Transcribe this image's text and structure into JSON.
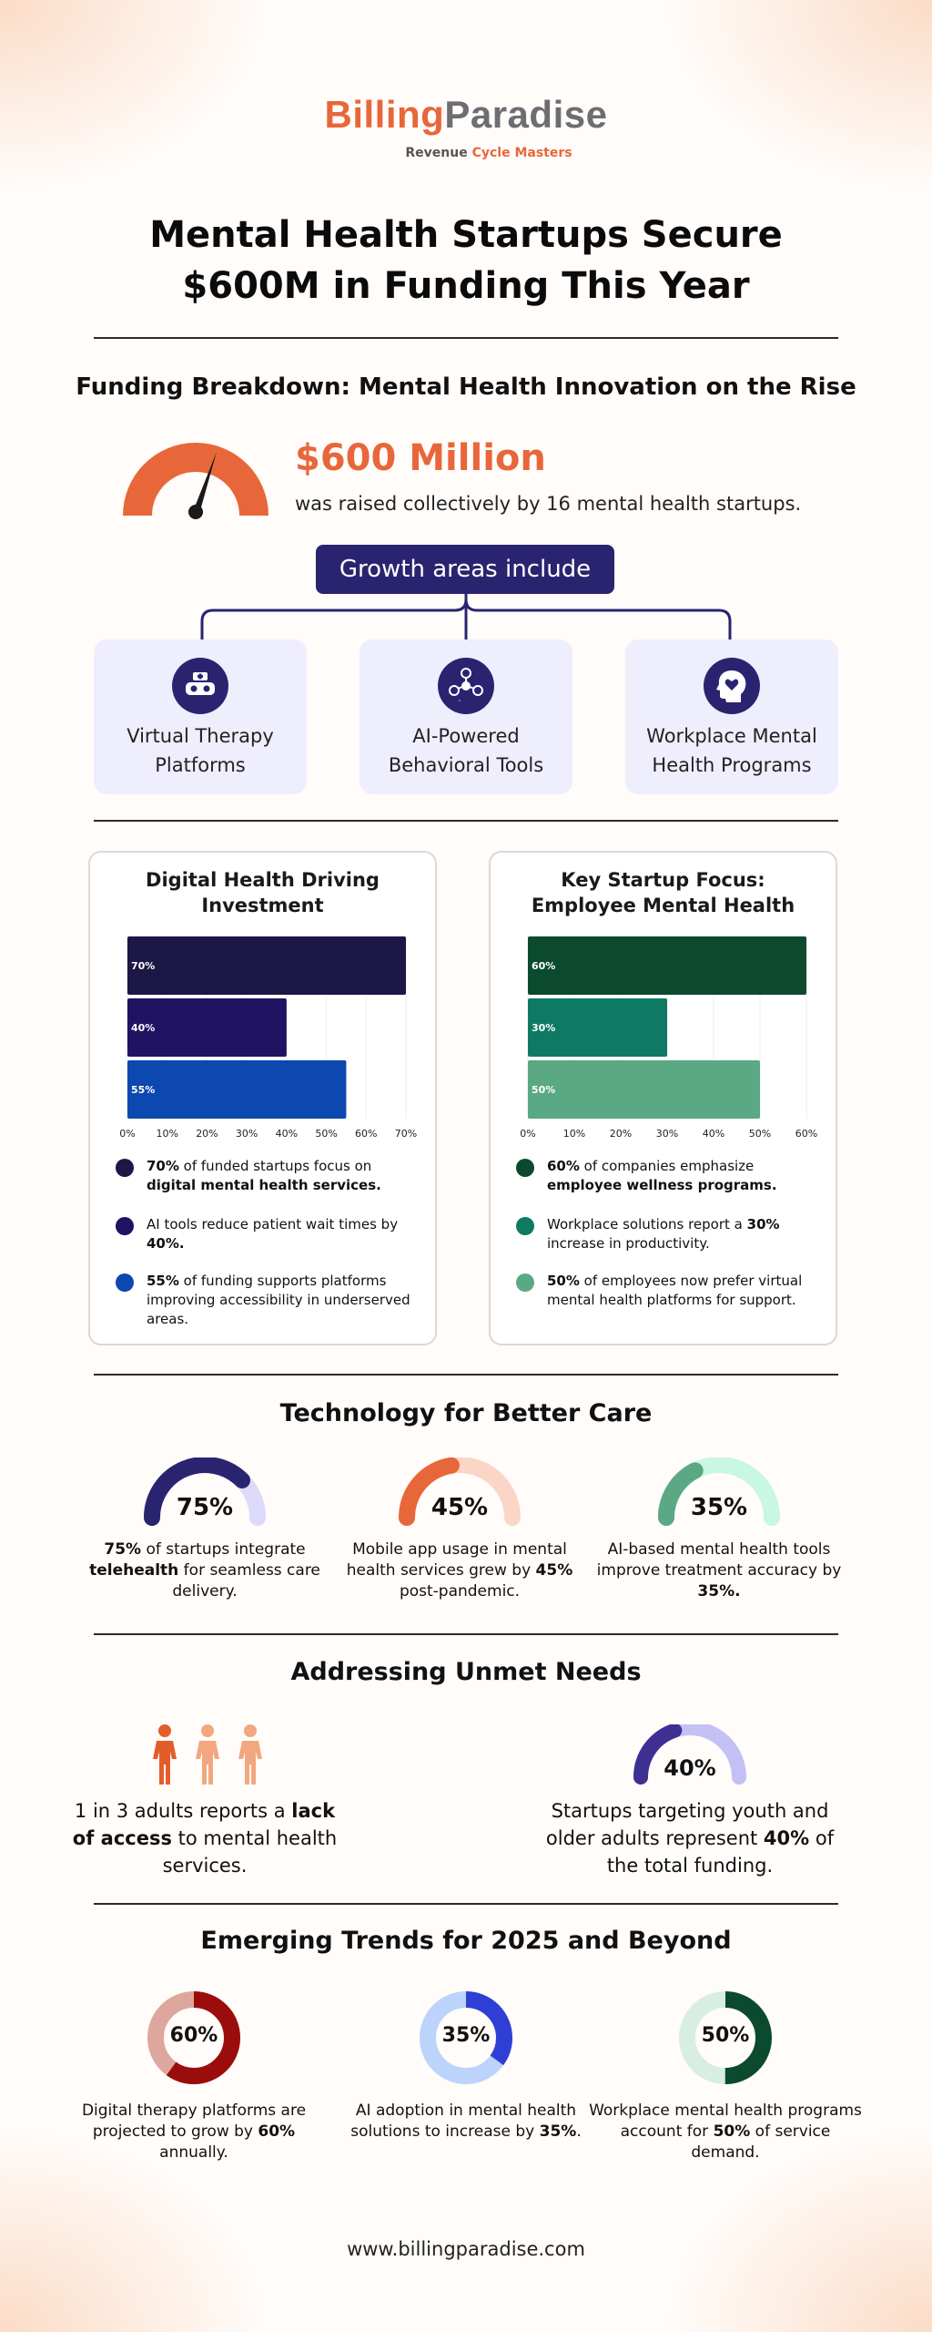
{
  "brand": {
    "name_a": "Billing",
    "name_b": "Paradise",
    "tagline_a": "Revenue ",
    "tagline_b": "Cycle Masters"
  },
  "title_line1": "Mental Health Startups Secure",
  "title_line2": "$600M in Funding This Year",
  "funding": {
    "heading": "Funding Breakdown: Mental Health Innovation on the Rise",
    "amount": "$600 Million",
    "description": "was raised collectively by 16 mental health startups.",
    "growth_label": "Growth areas include",
    "areas": [
      {
        "label": "Virtual Therapy Platforms",
        "icon": "vr-headset-icon"
      },
      {
        "label": "AI-Powered Behavioral Tools",
        "icon": "smiley-network-icon"
      },
      {
        "label": "Workplace Mental Health Programs",
        "icon": "head-heart-icon"
      }
    ]
  },
  "chart_data": [
    {
      "type": "bar",
      "orientation": "horizontal",
      "title": "Digital Health Driving Investment",
      "categories": [
        "70%",
        "40%",
        "55%"
      ],
      "values": [
        70,
        40,
        55
      ],
      "colors": [
        "#1c1745",
        "#1f1362",
        "#0d47b0"
      ],
      "xlim": [
        0,
        70
      ],
      "xticks": [
        "0%",
        "10%",
        "20%",
        "30%",
        "40%",
        "50%",
        "60%",
        "70%"
      ],
      "legend": [
        {
          "pre": "",
          "bold": "70%",
          "mid": " of funded startups focus on ",
          "bold2": "digital mental health services.",
          "post": ""
        },
        {
          "pre": "AI tools reduce patient wait times by ",
          "bold": "40%.",
          "mid": "",
          "bold2": "",
          "post": ""
        },
        {
          "pre": "",
          "bold": "55%",
          "mid": " of funding supports platforms improving accessibility in underserved areas.",
          "bold2": "",
          "post": ""
        }
      ]
    },
    {
      "type": "bar",
      "orientation": "horizontal",
      "title": "Key Startup Focus: Employee Mental Health",
      "categories": [
        "60%",
        "30%",
        "50%"
      ],
      "values": [
        60,
        30,
        50
      ],
      "colors": [
        "#0b4a2e",
        "#0e7a63",
        "#5aa884"
      ],
      "xlim": [
        0,
        60
      ],
      "xticks": [
        "0%",
        "10%",
        "20%",
        "30%",
        "40%",
        "50%",
        "60%"
      ],
      "legend": [
        {
          "pre": "",
          "bold": "60%",
          "mid": " of companies emphasize ",
          "bold2": "employee wellness programs.",
          "post": ""
        },
        {
          "pre": "Workplace solutions report a ",
          "bold": "30%",
          "mid": " increase in productivity.",
          "bold2": "",
          "post": ""
        },
        {
          "pre": "",
          "bold": "50%",
          "mid": " of employees now prefer virtual mental health platforms for support.",
          "bold2": "",
          "post": ""
        }
      ]
    }
  ],
  "tech": {
    "heading": "Technology for Better Care",
    "items": [
      {
        "pct": "75%",
        "value": 75,
        "color": "#2a2470",
        "track": "#dcd9fb",
        "pre": "",
        "bold": "75%",
        "mid": " of startups integrate ",
        "bold2": "telehealth",
        "post": " for seamless care delivery."
      },
      {
        "pct": "45%",
        "value": 45,
        "color": "#e8673a",
        "track": "#fbd6c7",
        "pre": "Mobile app usage in mental health services grew by ",
        "bold": "45%",
        "mid": " post-pandemic.",
        "bold2": "",
        "post": ""
      },
      {
        "pct": "35%",
        "value": 35,
        "color": "#5aa884",
        "track": "#c8f7e2",
        "pre": "AI-based mental health tools improve treatment accuracy by ",
        "bold": "35%.",
        "mid": "",
        "bold2": "",
        "post": ""
      }
    ]
  },
  "unmet": {
    "heading": "Addressing Unmet Needs",
    "people_colors": [
      "#e35d2b",
      "#f2a77e",
      "#f2a77e"
    ],
    "left_pre": "1 in 3 adults reports a ",
    "left_bold": "lack of access",
    "left_post": " to mental health services.",
    "gauge_pct": "40%",
    "gauge_value": 40,
    "gauge_color": "#3e2f93",
    "gauge_track": "#c4c0f5",
    "right_pre": "Startups targeting youth and older adults represent ",
    "right_bold": "40%",
    "right_post": " of the total funding."
  },
  "trends": {
    "heading": "Emerging Trends for 2025 and Beyond",
    "items": [
      {
        "pct": "60%",
        "value": 60,
        "color": "#9b0d0d",
        "track": "#dda79d",
        "pre": "Digital therapy platforms are projected to grow by ",
        "bold": "60%",
        "post": " annually."
      },
      {
        "pct": "35%",
        "value": 35,
        "color": "#2f3fd6",
        "track": "#bcd4fb",
        "pre": "AI adoption in mental health solutions to increase by ",
        "bold": "35%",
        "post": "."
      },
      {
        "pct": "50%",
        "value": 50,
        "color": "#0b4a2e",
        "track": "#d8eee3",
        "pre": "Workplace mental health programs account for ",
        "bold": "50%",
        "post": " of service demand."
      }
    ]
  },
  "website": "www.billingparadise.com"
}
